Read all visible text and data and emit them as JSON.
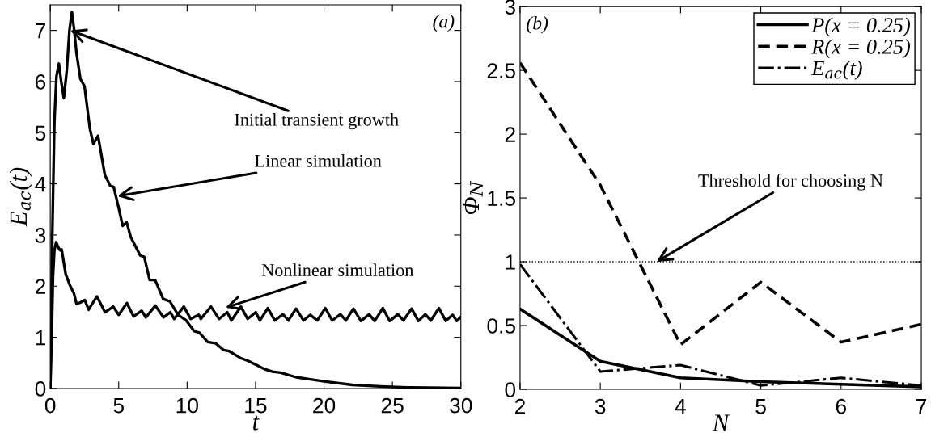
{
  "chart_data": [
    {
      "type": "line",
      "xlabel": "t",
      "ylabel": "E$_{ac}$(t)",
      "xlim": [
        0,
        30
      ],
      "ylim": [
        0,
        7.5
      ],
      "xticks": [
        0,
        5,
        10,
        15,
        20,
        25,
        30
      ],
      "yticks": [
        0,
        1,
        2,
        3,
        4,
        5,
        6,
        7
      ],
      "grid": false,
      "legend": false,
      "series": [
        {
          "color": "#000000",
          "line_style": "solid",
          "x": [
            0,
            0.15,
            0.3,
            0.45,
            0.63,
            0.8,
            0.99,
            1.2,
            1.4,
            1.58,
            1.75,
            1.92,
            2.2,
            2.5,
            2.9,
            3.15,
            3.49,
            3.99,
            4.39,
            4.63,
            4.99,
            5.29,
            5.58,
            5.88,
            6.57,
            6.87,
            7.26,
            7.66,
            8.25,
            8.75,
            9.34,
            9.93,
            10.52,
            10.9,
            11.5,
            12.1,
            12.68,
            13.07,
            13.86,
            14.45,
            15.05,
            15.64,
            16.24,
            16.84,
            17.96,
            19,
            20,
            22.07,
            24.1,
            26.1,
            30
          ],
          "values": [
            0,
            3.0,
            5.2,
            6.1,
            6.35,
            6.0,
            5.68,
            6.2,
            7.0,
            7.36,
            7.0,
            6.55,
            6.05,
            5.91,
            5.07,
            4.78,
            4.94,
            4.17,
            3.96,
            3.94,
            3.54,
            3.18,
            3.25,
            2.96,
            2.6,
            2.57,
            2.12,
            2.12,
            1.75,
            1.7,
            1.44,
            1.33,
            1.12,
            1.09,
            0.91,
            0.88,
            0.75,
            0.73,
            0.6,
            0.54,
            0.46,
            0.38,
            0.33,
            0.31,
            0.22,
            0.18,
            0.14,
            0.07,
            0.04,
            0.02,
            0.01
          ]
        },
        {
          "color": "#000000",
          "line_style": "solid",
          "x": [
            0,
            0.1,
            0.2,
            0.3,
            0.43,
            0.6,
            0.73,
            0.83,
            1.13,
            1.43,
            1.73,
            1.92,
            2.2,
            2.52,
            2.8,
            3.41,
            4.0,
            4.6,
            5.0,
            5.6,
            6.09,
            6.68,
            6.98,
            7.68,
            8.27,
            8.77,
            9.06,
            9.76,
            10.26,
            10.85,
            11.0,
            11.74,
            12.34,
            12.93,
            13.23,
            13.93,
            14.42,
            15.02,
            15.32,
            15.9,
            16.4,
            17.0,
            17.4,
            17.96,
            18.5,
            19.0,
            19.5,
            20.1,
            20.6,
            21.2,
            21.6,
            22.15,
            22.7,
            23.3,
            23.7,
            24.3,
            24.8,
            25.4,
            25.8,
            26.4,
            26.9,
            27.4,
            27.8,
            28.4,
            28.9,
            29.4,
            29.7,
            30
          ],
          "values": [
            0,
            1.0,
            2.2,
            2.7,
            2.86,
            2.75,
            2.7,
            2.72,
            2.23,
            2.02,
            1.86,
            1.65,
            1.68,
            1.73,
            1.54,
            1.8,
            1.49,
            1.6,
            1.44,
            1.67,
            1.41,
            1.52,
            1.39,
            1.62,
            1.39,
            1.49,
            1.36,
            1.6,
            1.36,
            1.44,
            1.36,
            1.6,
            1.36,
            1.49,
            1.33,
            1.6,
            1.36,
            1.49,
            1.33,
            1.57,
            1.33,
            1.45,
            1.33,
            1.56,
            1.33,
            1.44,
            1.33,
            1.57,
            1.33,
            1.45,
            1.33,
            1.56,
            1.32,
            1.45,
            1.32,
            1.57,
            1.32,
            1.45,
            1.33,
            1.56,
            1.32,
            1.45,
            1.33,
            1.57,
            1.32,
            1.44,
            1.32,
            1.4
          ]
        }
      ],
      "annotations": [
        "(a)",
        {
          "text": "Initial transient growth",
          "x": 1.45,
          "y": 7.0
        },
        {
          "text": "Linear simulation",
          "x": 4.9,
          "y": 3.76
        },
        {
          "text": "Nonlinear simulation",
          "x": 12.8,
          "y": 1.58
        }
      ]
    },
    {
      "type": "line",
      "xlabel": "N",
      "ylabel": "Φ$_{N}$",
      "xlim": [
        2,
        7
      ],
      "ylim": [
        0,
        3
      ],
      "xticks": [
        2,
        3,
        4,
        5,
        6,
        7
      ],
      "yticks": [
        0,
        0.5,
        1,
        1.5,
        2,
        2.5,
        3
      ],
      "grid": false,
      "legend": "top right",
      "x": [
        2,
        3,
        4,
        5,
        6,
        7
      ],
      "series": [
        {
          "name": "P(x = 0.25)",
          "color": "#000000",
          "line_style": "solid",
          "values": [
            0.63,
            0.22,
            0.09,
            0.06,
            0.04,
            0.02
          ]
        },
        {
          "name": "R(x = 0.25)",
          "color": "#000000",
          "line_style": "dashed",
          "values": [
            2.56,
            1.6,
            0.35,
            0.84,
            0.37,
            0.51
          ]
        },
        {
          "name": "E$_{ac}$(t)",
          "color": "#000000",
          "line_style": "dashdot",
          "values": [
            0.98,
            0.14,
            0.19,
            0.03,
            0.09,
            0.03
          ]
        }
      ],
      "ref_lines": [
        {
          "axis": "y",
          "value": 1,
          "color": "#000000",
          "line_style": "dotted"
        }
      ],
      "annotations": [
        "(b)",
        {
          "text": "Threshold for choosing N",
          "x": 3.7,
          "y": 1
        }
      ]
    }
  ]
}
